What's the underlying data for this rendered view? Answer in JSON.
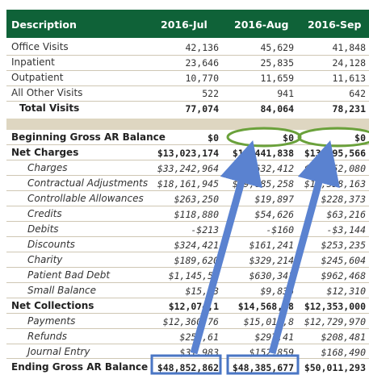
{
  "header": {
    "description": "Description",
    "cols": [
      "2016-Jul",
      "2016-Aug",
      "2016-Sep"
    ]
  },
  "visits": [
    {
      "label": "Office Visits",
      "v": [
        "42,136",
        "45,629",
        "41,848"
      ]
    },
    {
      "label": "Inpatient",
      "v": [
        "23,646",
        "25,835",
        "24,128"
      ]
    },
    {
      "label": "Outpatient",
      "v": [
        "10,770",
        "11,659",
        "11,613"
      ]
    },
    {
      "label": "All Other Visits",
      "v": [
        "522",
        "941",
        "642"
      ]
    }
  ],
  "total_visits": {
    "label": "Total Visits",
    "v": [
      "77,074",
      "84,064",
      "78,231"
    ]
  },
  "ar": [
    {
      "label": "Beginning Gross AR Balance",
      "v": [
        "$0",
        "$0",
        "$0"
      ],
      "style": "bold"
    },
    {
      "label": "Net Charges",
      "v": [
        "$13,023,174",
        "$14,441,838",
        "$13,995,566"
      ],
      "style": "bold"
    },
    {
      "label": "Charges",
      "v": [
        "$33,242,964",
        "$34,632,412",
        "$34,752,080"
      ],
      "style": "ital"
    },
    {
      "label": "Contractual Adjustments",
      "v": [
        "$18,161,945",
        "$19,685,258",
        "$18,558,163"
      ],
      "style": "ital"
    },
    {
      "label": "Controllable Allowances",
      "v": [
        "$263,250",
        "$19,897",
        "$228,373"
      ],
      "style": "ital"
    },
    {
      "label": "Credits",
      "v": [
        "$118,880",
        "$54,626",
        "$63,216"
      ],
      "style": "ital"
    },
    {
      "label": "Debits",
      "v": [
        "-$213",
        "-$160",
        "-$3,144"
      ],
      "style": "ital"
    },
    {
      "label": "Discounts",
      "v": [
        "$324,421",
        "$161,241",
        "$253,235"
      ],
      "style": "ital"
    },
    {
      "label": "Charity",
      "v": [
        "$189,620",
        "$329,214",
        "$245,604"
      ],
      "style": "ital"
    },
    {
      "label": "Patient Bad Debt",
      "v": [
        "$1,145,52",
        "$630,341",
        "$962,468"
      ],
      "style": "ital"
    },
    {
      "label": "Small Balance",
      "v": [
        "$15,93",
        "$9,836",
        "$12,310"
      ],
      "style": "ital"
    },
    {
      "label": "Net Collections",
      "v": [
        "$12,074,1",
        "$14,568,28",
        "$12,353,000"
      ],
      "style": "bold"
    },
    {
      "label": "Payments",
      "v": [
        "$12,360,76",
        "$15,018,8",
        "$12,729,970"
      ],
      "style": "ital"
    },
    {
      "label": "Refunds",
      "v": [
        "$254,61",
        "$297,41",
        "$208,481"
      ],
      "style": "ital"
    },
    {
      "label": "Journal Entry",
      "v": [
        "$31,983",
        "$152,859",
        "$168,490"
      ],
      "style": "ital"
    }
  ],
  "ending": {
    "label": "Ending Gross AR Balance",
    "v": [
      "$48,852,862",
      "$48,385,677",
      "$50,011,293"
    ]
  },
  "colors": {
    "header_bg": "#0f6238",
    "band": "#ded6c1",
    "ellipse": "#6aa13b",
    "box": "#4a76c4",
    "arrow": "#5a82d0"
  }
}
